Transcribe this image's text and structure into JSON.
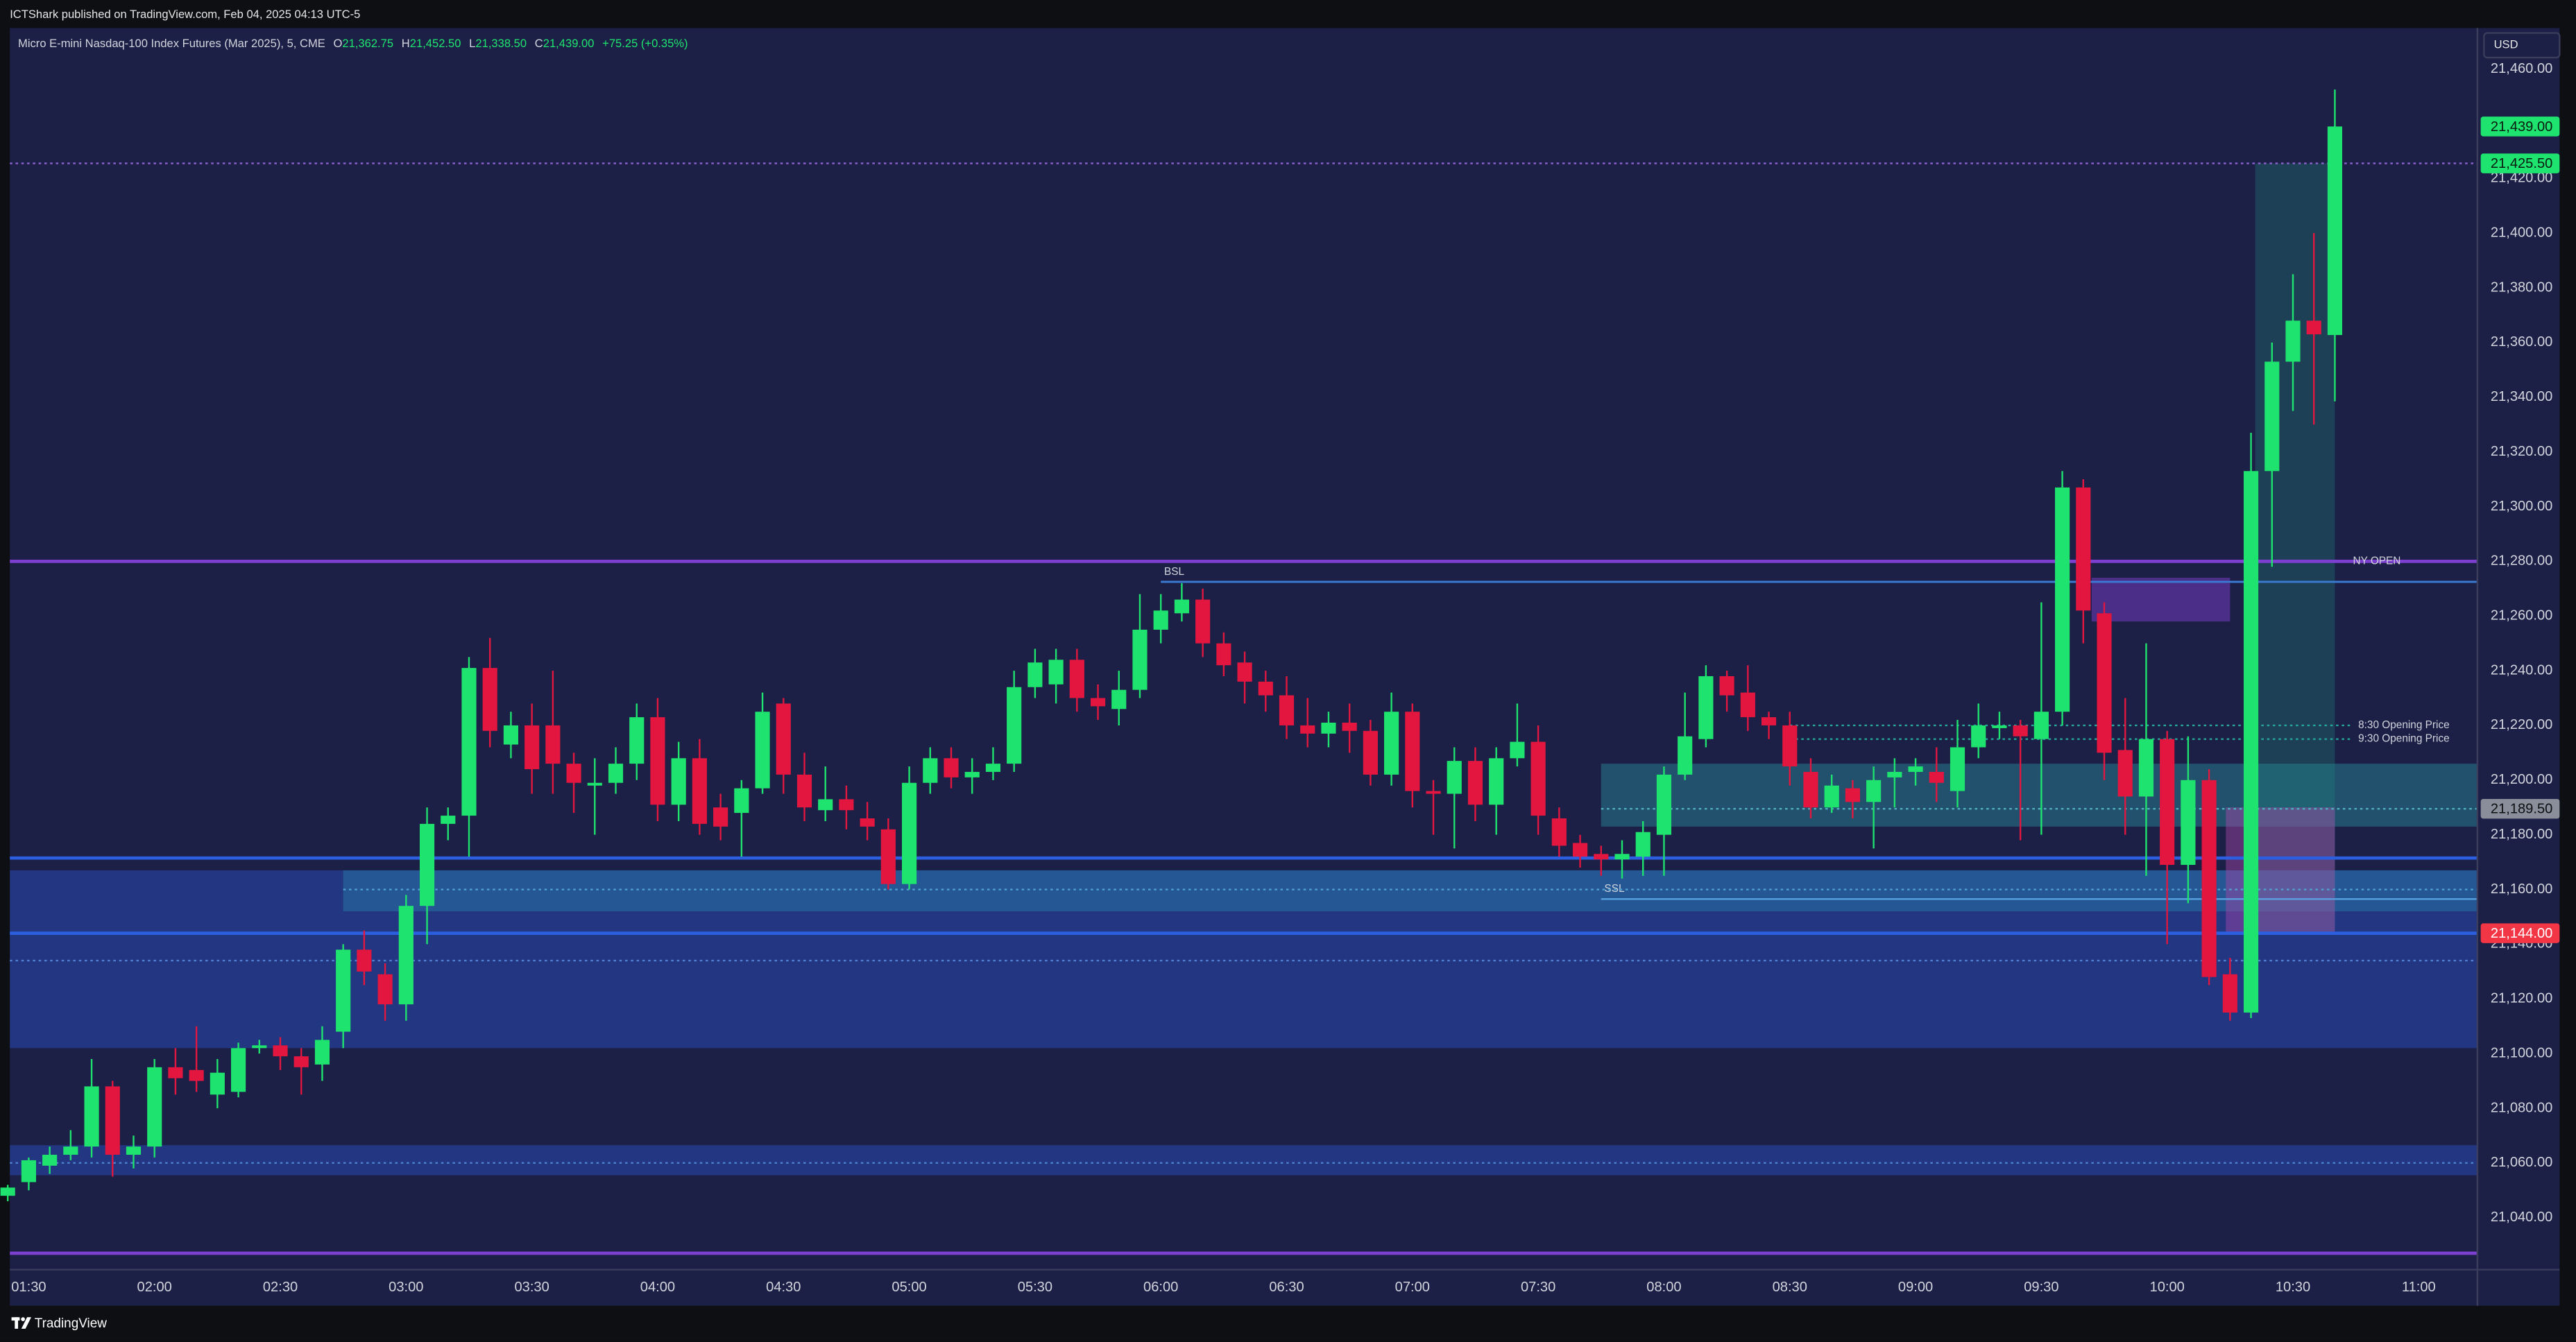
{
  "chart_data": {
    "type": "candlestick",
    "caption": "ICTShark published on TradingView.com, Feb 04, 2025 04:13 UTC-5",
    "title": "Micro E-mini Nasdaq-100 Index Futures (Mar 2025), 5, CME",
    "ohlc_readout": [
      {
        "key": "O",
        "value": "21,362.75"
      },
      {
        "key": "H",
        "value": "21,452.50"
      },
      {
        "key": "L",
        "value": "21,338.50"
      },
      {
        "key": "C",
        "value": "21,439.00"
      }
    ],
    "change": "+75.25 (+0.35%)",
    "currency": "USD",
    "brand": "TradingView",
    "up_color": "#1ee46f",
    "down_color": "#e2163f",
    "grid": false,
    "xlim": [
      85.5,
      674
    ],
    "ylim": [
      21021,
      21475
    ],
    "xticks": [
      {
        "value": 90,
        "label": "01:30"
      },
      {
        "value": 120,
        "label": "02:00"
      },
      {
        "value": 150,
        "label": "02:30"
      },
      {
        "value": 180,
        "label": "03:00"
      },
      {
        "value": 210,
        "label": "03:30"
      },
      {
        "value": 240,
        "label": "04:00"
      },
      {
        "value": 270,
        "label": "04:30"
      },
      {
        "value": 300,
        "label": "05:00"
      },
      {
        "value": 330,
        "label": "05:30"
      },
      {
        "value": 360,
        "label": "06:00"
      },
      {
        "value": 390,
        "label": "06:30"
      },
      {
        "value": 420,
        "label": "07:00"
      },
      {
        "value": 450,
        "label": "07:30"
      },
      {
        "value": 480,
        "label": "08:00"
      },
      {
        "value": 510,
        "label": "08:30"
      },
      {
        "value": 540,
        "label": "09:00"
      },
      {
        "value": 570,
        "label": "09:30"
      },
      {
        "value": 600,
        "label": "10:00"
      },
      {
        "value": 630,
        "label": "10:30"
      },
      {
        "value": 660,
        "label": "11:00"
      }
    ],
    "yticks": [
      {
        "value": 21040,
        "label": "21,040.00"
      },
      {
        "value": 21060,
        "label": "21,060.00"
      },
      {
        "value": 21080,
        "label": "21,080.00"
      },
      {
        "value": 21100,
        "label": "21,100.00"
      },
      {
        "value": 21120,
        "label": "21,120.00"
      },
      {
        "value": 21140,
        "label": "21,140.00"
      },
      {
        "value": 21160,
        "label": "21,160.00"
      },
      {
        "value": 21180,
        "label": "21,180.00"
      },
      {
        "value": 21200,
        "label": "21,200.00"
      },
      {
        "value": 21220,
        "label": "21,220.00"
      },
      {
        "value": 21240,
        "label": "21,240.00"
      },
      {
        "value": 21260,
        "label": "21,260.00"
      },
      {
        "value": 21280,
        "label": "21,280.00"
      },
      {
        "value": 21300,
        "label": "21,300.00"
      },
      {
        "value": 21320,
        "label": "21,320.00"
      },
      {
        "value": 21340,
        "label": "21,340.00"
      },
      {
        "value": 21360,
        "label": "21,360.00"
      },
      {
        "value": 21380,
        "label": "21,380.00"
      },
      {
        "value": 21400,
        "label": "21,400.00"
      },
      {
        "value": 21420,
        "label": "21,420.00"
      },
      {
        "value": 21440,
        "label": "21,440.00"
      },
      {
        "value": 21460,
        "label": "21,460.00"
      }
    ],
    "x": [
      85,
      90,
      95,
      100,
      105,
      110,
      115,
      120,
      125,
      130,
      135,
      140,
      145,
      150,
      155,
      160,
      165,
      170,
      175,
      180,
      185,
      190,
      195,
      200,
      205,
      210,
      215,
      220,
      225,
      230,
      235,
      240,
      245,
      250,
      255,
      260,
      265,
      270,
      275,
      280,
      285,
      290,
      295,
      300,
      305,
      310,
      315,
      320,
      325,
      330,
      335,
      340,
      345,
      350,
      355,
      360,
      365,
      370,
      375,
      380,
      385,
      390,
      395,
      400,
      405,
      410,
      415,
      420,
      425,
      430,
      435,
      440,
      445,
      450,
      455,
      460,
      465,
      470,
      475,
      480,
      485,
      490,
      495,
      500,
      505,
      510,
      515,
      520,
      525,
      530,
      535,
      540,
      545,
      550,
      555,
      560,
      565,
      570,
      575,
      580,
      585,
      590,
      595,
      600,
      605,
      610,
      615,
      620,
      625,
      630,
      635,
      640
    ],
    "open": [
      21048,
      21053,
      21059,
      21063,
      21066,
      21088,
      21063,
      21066,
      21095,
      21094,
      21085,
      21086,
      21102,
      21103,
      21099,
      21096,
      21108,
      21138,
      21129,
      21118,
      21154,
      21184,
      21187,
      21241,
      21213,
      21220,
      21220,
      21206,
      21198,
      21199,
      21206,
      21223,
      21191,
      21208,
      21190,
      21188,
      21197,
      21228,
      21202,
      21189,
      21193,
      21186,
      21182,
      21162,
      21199,
      21208,
      21201,
      21203,
      21206,
      21234,
      21235,
      21244,
      21230,
      21226,
      21233,
      21255,
      21261,
      21266,
      21250,
      21243,
      21236,
      21231,
      21220,
      21217,
      21221,
      21218,
      21202,
      21225,
      21196,
      21195,
      21207,
      21191,
      21208,
      21214,
      21186,
      21177,
      21173,
      21171,
      21172,
      21180,
      21202,
      21215,
      21238,
      21232,
      21223,
      21220,
      21203,
      21190,
      21197,
      21192,
      21201,
      21203,
      21203,
      21196,
      21212,
      21219,
      21220,
      21215,
      21225,
      21307,
      21261,
      21211,
      21194,
      21215,
      21169,
      21200,
      21129,
      21115,
      21313,
      21353,
      21368,
      21362.75
    ],
    "high": [
      21052,
      21062,
      21066,
      21072,
      21098,
      21090,
      21070,
      21098,
      21102,
      21110,
      21098,
      21104,
      21105,
      21106,
      21102,
      21110,
      21140,
      21145,
      21133,
      21158,
      21190,
      21190,
      21245,
      21252,
      21225,
      21228,
      21240,
      21210,
      21208,
      21212,
      21228,
      21230,
      21214,
      21215,
      21195,
      21200,
      21232,
      21230,
      21210,
      21205,
      21198,
      21192,
      21186,
      21205,
      21212,
      21212,
      21208,
      21212,
      21240,
      21248,
      21248,
      21248,
      21235,
      21240,
      21268,
      21268,
      21272,
      21270,
      21254,
      21247,
      21240,
      21238,
      21230,
      21225,
      21228,
      21222,
      21232,
      21228,
      21200,
      21212,
      21212,
      21212,
      21228,
      21220,
      21190,
      21180,
      21176,
      21178,
      21185,
      21205,
      21232,
      21242,
      21240,
      21242,
      21225,
      21225,
      21208,
      21202,
      21200,
      21205,
      21208,
      21208,
      21212,
      21222,
      21228,
      21225,
      21222,
      21265,
      21313,
      21310,
      21265,
      21230,
      21250,
      21218,
      21216,
      21204,
      21135,
      21327,
      21360,
      21385,
      21400,
      21452.5
    ],
    "low": [
      21046,
      21050,
      21056,
      21061,
      21062,
      21055,
      21058,
      21062,
      21085,
      21086,
      21080,
      21084,
      21100,
      21094,
      21085,
      21090,
      21102,
      21125,
      21112,
      21112,
      21140,
      21178,
      21172,
      21212,
      21208,
      21195,
      21195,
      21188,
      21180,
      21195,
      21200,
      21185,
      21185,
      21180,
      21178,
      21172,
      21195,
      21195,
      21185,
      21185,
      21182,
      21178,
      21160,
      21160,
      21195,
      21197,
      21195,
      21200,
      21203,
      21230,
      21228,
      21225,
      21222,
      21220,
      21230,
      21250,
      21258,
      21245,
      21238,
      21228,
      21225,
      21215,
      21212,
      21212,
      21210,
      21198,
      21198,
      21190,
      21180,
      21175,
      21185,
      21180,
      21205,
      21180,
      21172,
      21168,
      21165,
      21164,
      21165,
      21165,
      21200,
      21212,
      21225,
      21218,
      21215,
      21198,
      21186,
      21188,
      21186,
      21175,
      21190,
      21198,
      21192,
      21190,
      21208,
      21215,
      21178,
      21180,
      21220,
      21250,
      21200,
      21180,
      21165,
      21140,
      21155,
      21125,
      21112,
      21113,
      21278,
      21335,
      21330,
      21338.5
    ],
    "close": [
      21051,
      21061,
      21063,
      21066,
      21088,
      21063,
      21066,
      21095,
      21091,
      21090,
      21093,
      21102,
      21103,
      21099,
      21095,
      21105,
      21138,
      21130,
      21118,
      21154,
      21184,
      21187,
      21241,
      21218,
      21220,
      21204,
      21206,
      21199,
      21199,
      21206,
      21223,
      21191,
      21208,
      21184,
      21183,
      21197,
      21225,
      21202,
      21190,
      21193,
      21189,
      21183,
      21162,
      21199,
      21208,
      21201,
      21203,
      21206,
      21234,
      21243,
      21244,
      21230,
      21227,
      21233,
      21255,
      21262,
      21266,
      21250,
      21242,
      21236,
      21231,
      21220,
      21217,
      21221,
      21218,
      21202,
      21225,
      21196,
      21195,
      21207,
      21191,
      21208,
      21214,
      21187,
      21176,
      21172,
      21171,
      21173,
      21181,
      21202,
      21216,
      21238,
      21231,
      21223,
      21220,
      21205,
      21190,
      21198,
      21192,
      21200,
      21203,
      21205,
      21199,
      21212,
      21220,
      21220,
      21216,
      21225,
      21307,
      21262,
      21210,
      21194,
      21215,
      21169,
      21200,
      21128,
      21115,
      21313,
      21353,
      21368,
      21363,
      21439
    ],
    "zones": [
      {
        "low": 21102,
        "high": 21167,
        "color": "rgba(38,72,178,0.55)"
      },
      {
        "x_start": 165,
        "low": 21152,
        "high": 21167,
        "color": "rgba(40,150,180,0.35)"
      },
      {
        "low": 21055.5,
        "high": 21066.5,
        "color": "rgba(38,72,178,0.55)"
      },
      {
        "x_start": 465,
        "low": 21183,
        "high": 21206,
        "color": "rgba(40,130,150,0.5)"
      },
      {
        "x_start": 582,
        "x_end": 615,
        "low": 21258,
        "high": 21274,
        "color": "rgba(120,60,200,0.5)"
      },
      {
        "x_start": 621,
        "x_end": 640,
        "low": 21144,
        "high": 21425.5,
        "color": "rgba(30,140,125,0.3)"
      },
      {
        "x_start": 614,
        "x_end": 640,
        "low": 21144,
        "high": 21190,
        "color": "rgba(170,70,170,0.45)"
      }
    ],
    "levels": [
      {
        "value": 21280,
        "color": "#7d3fd0",
        "width": 2,
        "style": "solid",
        "label": "NY OPEN"
      },
      {
        "value": 21272.5,
        "x_start": 360,
        "color": "#3a7bd5",
        "width": 1.2,
        "style": "solid",
        "label": "BSL"
      },
      {
        "value": 21171.5,
        "color": "#2b5fe0",
        "width": 2,
        "style": "solid"
      },
      {
        "value": 21144,
        "color": "#2b5fe0",
        "width": 2,
        "style": "solid"
      },
      {
        "value": 21156.5,
        "x_start": 465,
        "color": "#5aa0e0",
        "width": 1,
        "style": "solid",
        "label": "SSL"
      },
      {
        "value": 21027,
        "color": "#7d3fd0",
        "width": 2,
        "style": "solid"
      },
      {
        "value": 21425.5,
        "color": "#8a62d0",
        "width": 1,
        "style": "dotted"
      },
      {
        "value": 21220,
        "x_start": 510,
        "x_end": 644,
        "color": "#26a69a",
        "width": 1,
        "style": "dotted",
        "label": "8:30 Opening Price"
      },
      {
        "value": 21215,
        "x_start": 510,
        "x_end": 644,
        "color": "#26a69a",
        "width": 1,
        "style": "dotted",
        "label": "9:30 Opening Price"
      },
      {
        "value": 21189.5,
        "x_start": 465,
        "color": "#4fb0c0",
        "width": 1,
        "style": "dotted"
      },
      {
        "value": 21160,
        "x_start": 165,
        "color": "#4fa0d0",
        "width": 1,
        "style": "dotted"
      },
      {
        "value": 21134,
        "color": "#4f80d0",
        "width": 1,
        "style": "dotted"
      },
      {
        "value": 21060,
        "color": "#4f80d0",
        "width": 1,
        "style": "dotted"
      }
    ],
    "price_labels": [
      {
        "value": 21439,
        "label": "21,439.00",
        "color": "#1ee46f",
        "text_color": "#0b1a10"
      },
      {
        "value": 21425.5,
        "label": "21,425.50",
        "color": "#1ee46f",
        "text_color": "#0b1a10"
      },
      {
        "value": 21189.5,
        "label": "21,189.50",
        "color": "#8a8e9a",
        "text_color": "#0e0f13"
      },
      {
        "value": 21144,
        "label": "21,144.00",
        "color": "#f23645",
        "text_color": "#ffffff"
      }
    ]
  }
}
